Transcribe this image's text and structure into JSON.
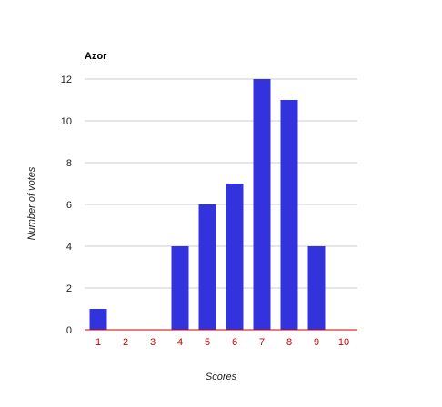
{
  "chart_data": {
    "type": "bar",
    "title": "Azor",
    "xlabel": "Scores",
    "ylabel": "Number of votes",
    "categories": [
      "1",
      "2",
      "3",
      "4",
      "5",
      "6",
      "7",
      "8",
      "9",
      "10"
    ],
    "values": [
      1,
      0,
      0,
      4,
      6,
      7,
      12,
      11,
      4,
      0
    ],
    "ylim": [
      0,
      12
    ],
    "yticks": [
      0,
      2,
      4,
      6,
      8,
      10,
      12
    ],
    "grid": true,
    "legend": "none",
    "colors": {
      "bar": "#3333dd",
      "baseline": "#cc0000",
      "gridline": "#cccccc",
      "x_tick_label": "#cc0000",
      "y_tick_label": "#222222"
    }
  }
}
